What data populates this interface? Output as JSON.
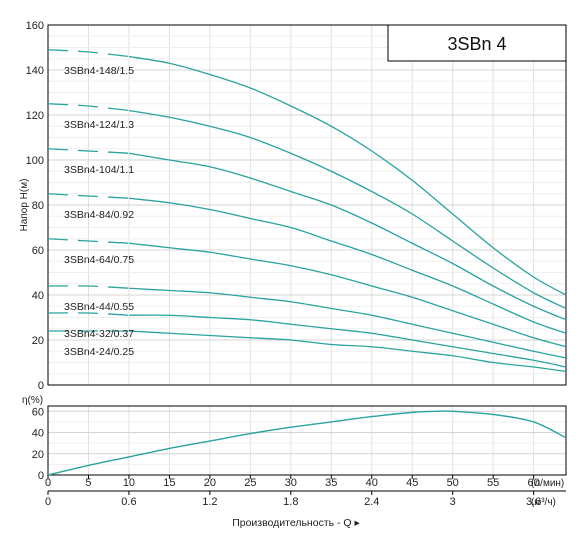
{
  "chart_data": [
    {
      "type": "line",
      "title": "3SBn 4",
      "xlabel": "",
      "ylabel": "Напор H(м)",
      "ylim": [
        0,
        160
      ],
      "yticks": [
        0,
        20,
        40,
        60,
        80,
        100,
        120,
        140,
        160
      ],
      "xlim": [
        0,
        64
      ],
      "grid": true,
      "line_color": "#2aa39f",
      "series": [
        {
          "name": "3SBn4-148/1.5",
          "x": [
            0,
            5,
            10,
            15,
            20,
            25,
            30,
            35,
            40,
            45,
            50,
            55,
            60,
            64
          ],
          "y": [
            149,
            148,
            146,
            143,
            138,
            132,
            124,
            115,
            104,
            91,
            76,
            61,
            48,
            40
          ]
        },
        {
          "name": "3SBn4-124/1.3",
          "x": [
            0,
            5,
            10,
            15,
            20,
            25,
            30,
            35,
            40,
            45,
            50,
            55,
            60,
            64
          ],
          "y": [
            125,
            124,
            122,
            119,
            115,
            110,
            103,
            95,
            86,
            76,
            64,
            52,
            41,
            34
          ]
        },
        {
          "name": "3SBn4-104/1.1",
          "x": [
            0,
            5,
            10,
            15,
            20,
            25,
            30,
            35,
            40,
            45,
            50,
            55,
            60,
            64
          ],
          "y": [
            105,
            104,
            103,
            100,
            97,
            92,
            86,
            80,
            72,
            63,
            54,
            44,
            35,
            29
          ]
        },
        {
          "name": "3SBn4-84/0.92",
          "x": [
            0,
            5,
            10,
            15,
            20,
            25,
            30,
            35,
            40,
            45,
            50,
            55,
            60,
            64
          ],
          "y": [
            85,
            84,
            83,
            81,
            78,
            74,
            70,
            64,
            58,
            51,
            44,
            36,
            28,
            23
          ]
        },
        {
          "name": "3SBn4-64/0.75",
          "x": [
            0,
            5,
            10,
            15,
            20,
            25,
            30,
            35,
            40,
            45,
            50,
            55,
            60,
            64
          ],
          "y": [
            65,
            64,
            63,
            61,
            59,
            56,
            53,
            49,
            44,
            39,
            33,
            27,
            21,
            17
          ]
        },
        {
          "name": "3SBn4-44/0.55",
          "x": [
            0,
            5,
            10,
            15,
            20,
            25,
            30,
            35,
            40,
            45,
            50,
            55,
            60,
            64
          ],
          "y": [
            44,
            44,
            43,
            42,
            41,
            39,
            37,
            34,
            31,
            27,
            23,
            19,
            15,
            12
          ]
        },
        {
          "name": "3SBn4-32/0.37",
          "x": [
            0,
            5,
            10,
            15,
            20,
            25,
            30,
            35,
            40,
            45,
            50,
            55,
            60,
            64
          ],
          "y": [
            32,
            32,
            31,
            31,
            30,
            29,
            27,
            25,
            23,
            20,
            17,
            14,
            11,
            8
          ]
        },
        {
          "name": "3SBn4-24/0.25",
          "x": [
            0,
            5,
            10,
            15,
            20,
            25,
            30,
            35,
            40,
            45,
            50,
            55,
            60,
            64
          ],
          "y": [
            24,
            24,
            24,
            23,
            22,
            21,
            20,
            18,
            17,
            15,
            13,
            10,
            8,
            6
          ]
        }
      ]
    },
    {
      "type": "line",
      "ylabel": "η(%)",
      "ylim": [
        0,
        65
      ],
      "yticks": [
        0,
        20,
        40,
        60
      ],
      "xlim": [
        0,
        64
      ],
      "grid": true,
      "series": [
        {
          "x": [
            0,
            5,
            10,
            15,
            20,
            25,
            30,
            35,
            40,
            45,
            48,
            50,
            55,
            60,
            64
          ],
          "y": [
            0,
            9,
            17,
            25,
            32,
            39,
            45,
            50,
            55,
            59,
            60,
            60,
            57,
            50,
            35
          ]
        }
      ]
    }
  ],
  "x_axis_lpm": {
    "unit": "(л/мин)",
    "ticks": [
      "0",
      "5",
      "10",
      "15",
      "20",
      "25",
      "30",
      "35",
      "40",
      "45",
      "50",
      "55",
      "60"
    ],
    "values": [
      0,
      5,
      10,
      15,
      20,
      25,
      30,
      35,
      40,
      45,
      50,
      55,
      60
    ]
  },
  "x_axis_m3h": {
    "unit": "(м³/ч)",
    "ticks": [
      "0",
      "0.6",
      "1.2",
      "1.8",
      "2.4",
      "3",
      "3.6"
    ],
    "values": [
      0,
      0.6,
      1.2,
      1.8,
      2.4,
      3.0,
      3.6
    ]
  },
  "footer_label": "Производительность - Q ▸"
}
